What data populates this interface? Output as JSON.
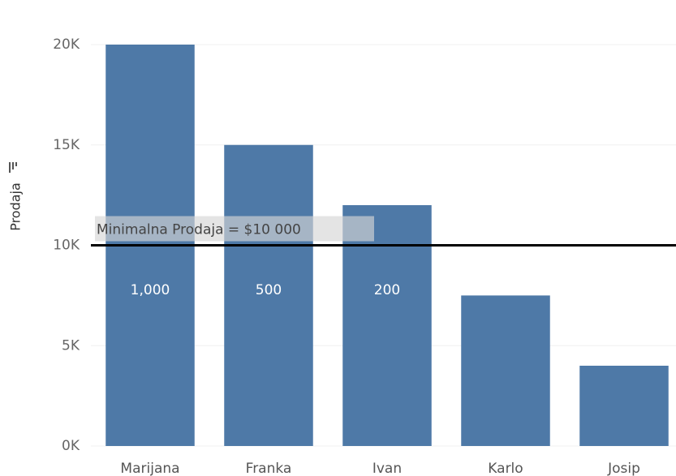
{
  "chart_data": {
    "type": "bar",
    "y_axis_label": "Prodaja",
    "categories": [
      "Marijana",
      "Franka",
      "Ivan",
      "Karlo",
      "Josip"
    ],
    "values": [
      20000,
      15000,
      12000,
      7500,
      4000
    ],
    "color": "#4e79a7",
    "bar_labels": [
      {
        "value": 1000,
        "label": "1,000"
      },
      {
        "value": 500,
        "label": "500"
      },
      {
        "value": 200,
        "label": "200"
      }
    ],
    "reference_line": {
      "value": 10000,
      "label": "Minimalna Prodaja = $10 000"
    },
    "ylim": [
      0,
      20000
    ],
    "yticks": [
      {
        "value": 0,
        "label": "0K"
      },
      {
        "value": 5000,
        "label": "5K"
      },
      {
        "value": 10000,
        "label": "10K"
      },
      {
        "value": 15000,
        "label": "15K"
      },
      {
        "value": 20000,
        "label": "20K"
      }
    ],
    "grid": true
  }
}
